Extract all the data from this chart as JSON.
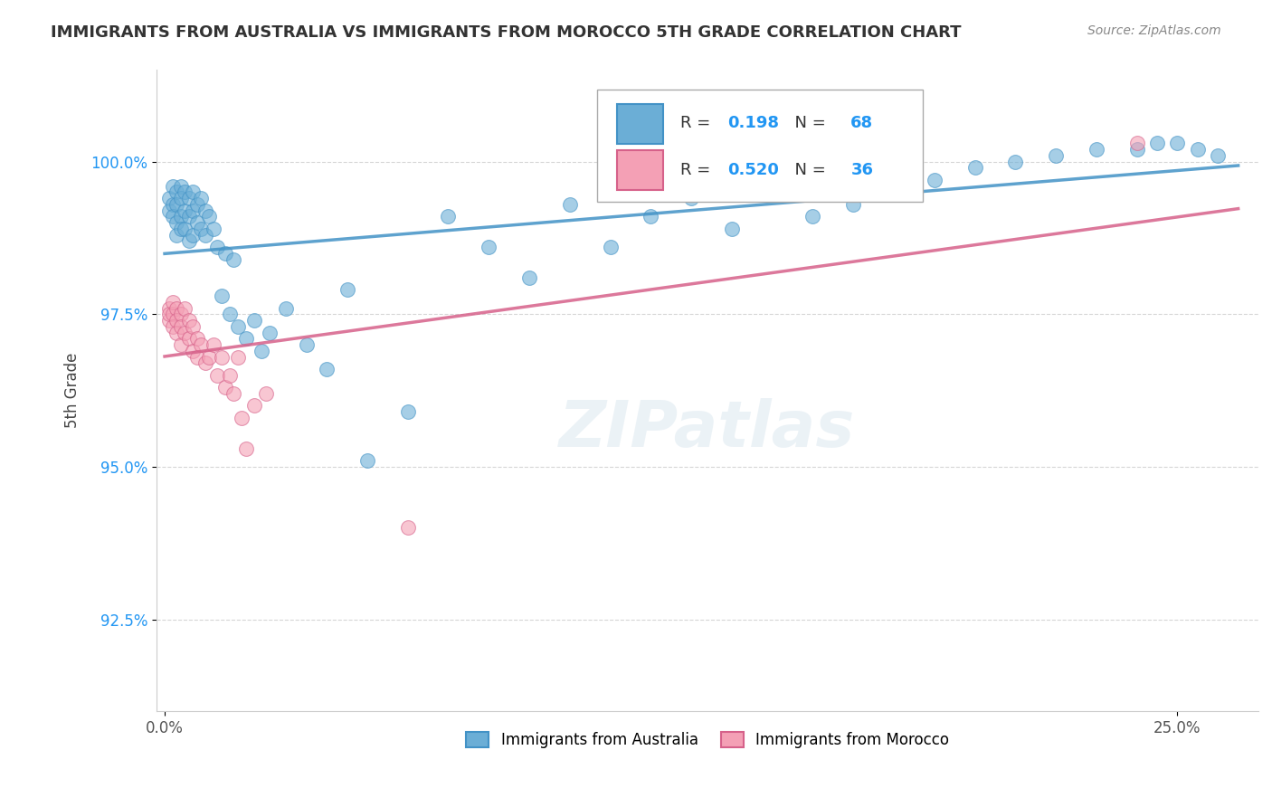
{
  "title": "IMMIGRANTS FROM AUSTRALIA VS IMMIGRANTS FROM MOROCCO 5TH GRADE CORRELATION CHART",
  "source": "Source: ZipAtlas.com",
  "ylabel": "5th Grade",
  "ymin": 91.0,
  "ymax": 101.5,
  "xmin": -0.002,
  "xmax": 0.27,
  "legend1_label": "Immigrants from Australia",
  "legend2_label": "Immigrants from Morocco",
  "R_australia": "0.198",
  "N_australia": "68",
  "R_morocco": "0.520",
  "N_morocco": "36",
  "color_australia": "#6baed6",
  "color_morocco": "#f4a0b5",
  "line_color_australia": "#4292c6",
  "line_color_morocco": "#d6618a",
  "australia_x": [
    0.001,
    0.001,
    0.002,
    0.002,
    0.002,
    0.003,
    0.003,
    0.003,
    0.003,
    0.004,
    0.004,
    0.004,
    0.004,
    0.005,
    0.005,
    0.005,
    0.006,
    0.006,
    0.006,
    0.007,
    0.007,
    0.007,
    0.008,
    0.008,
    0.009,
    0.009,
    0.01,
    0.01,
    0.011,
    0.012,
    0.013,
    0.014,
    0.015,
    0.016,
    0.017,
    0.018,
    0.02,
    0.022,
    0.024,
    0.026,
    0.03,
    0.035,
    0.04,
    0.045,
    0.05,
    0.06,
    0.07,
    0.08,
    0.09,
    0.1,
    0.11,
    0.12,
    0.13,
    0.14,
    0.15,
    0.16,
    0.17,
    0.18,
    0.19,
    0.2,
    0.21,
    0.22,
    0.23,
    0.24,
    0.245,
    0.25,
    0.255,
    0.26
  ],
  "australia_y": [
    99.4,
    99.2,
    99.6,
    99.3,
    99.1,
    99.5,
    99.3,
    99.0,
    98.8,
    99.6,
    99.4,
    99.1,
    98.9,
    99.5,
    99.2,
    98.9,
    99.4,
    99.1,
    98.7,
    99.5,
    99.2,
    98.8,
    99.3,
    99.0,
    99.4,
    98.9,
    99.2,
    98.8,
    99.1,
    98.9,
    98.6,
    97.8,
    98.5,
    97.5,
    98.4,
    97.3,
    97.1,
    97.4,
    96.9,
    97.2,
    97.6,
    97.0,
    96.6,
    97.9,
    95.1,
    95.9,
    99.1,
    98.6,
    98.1,
    99.3,
    98.6,
    99.1,
    99.4,
    98.9,
    99.6,
    99.1,
    99.3,
    99.5,
    99.7,
    99.9,
    100.0,
    100.1,
    100.2,
    100.2,
    100.3,
    100.3,
    100.2,
    100.1
  ],
  "morocco_x": [
    0.001,
    0.001,
    0.001,
    0.002,
    0.002,
    0.002,
    0.003,
    0.003,
    0.003,
    0.004,
    0.004,
    0.004,
    0.005,
    0.005,
    0.006,
    0.006,
    0.007,
    0.007,
    0.008,
    0.008,
    0.009,
    0.01,
    0.011,
    0.012,
    0.013,
    0.014,
    0.015,
    0.016,
    0.017,
    0.018,
    0.019,
    0.02,
    0.022,
    0.025,
    0.06,
    0.24
  ],
  "morocco_y": [
    97.6,
    97.4,
    97.5,
    97.5,
    97.3,
    97.7,
    97.6,
    97.4,
    97.2,
    97.5,
    97.3,
    97.0,
    97.6,
    97.2,
    97.4,
    97.1,
    97.3,
    96.9,
    97.1,
    96.8,
    97.0,
    96.7,
    96.8,
    97.0,
    96.5,
    96.8,
    96.3,
    96.5,
    96.2,
    96.8,
    95.8,
    95.3,
    96.0,
    96.2,
    94.0,
    100.3
  ]
}
